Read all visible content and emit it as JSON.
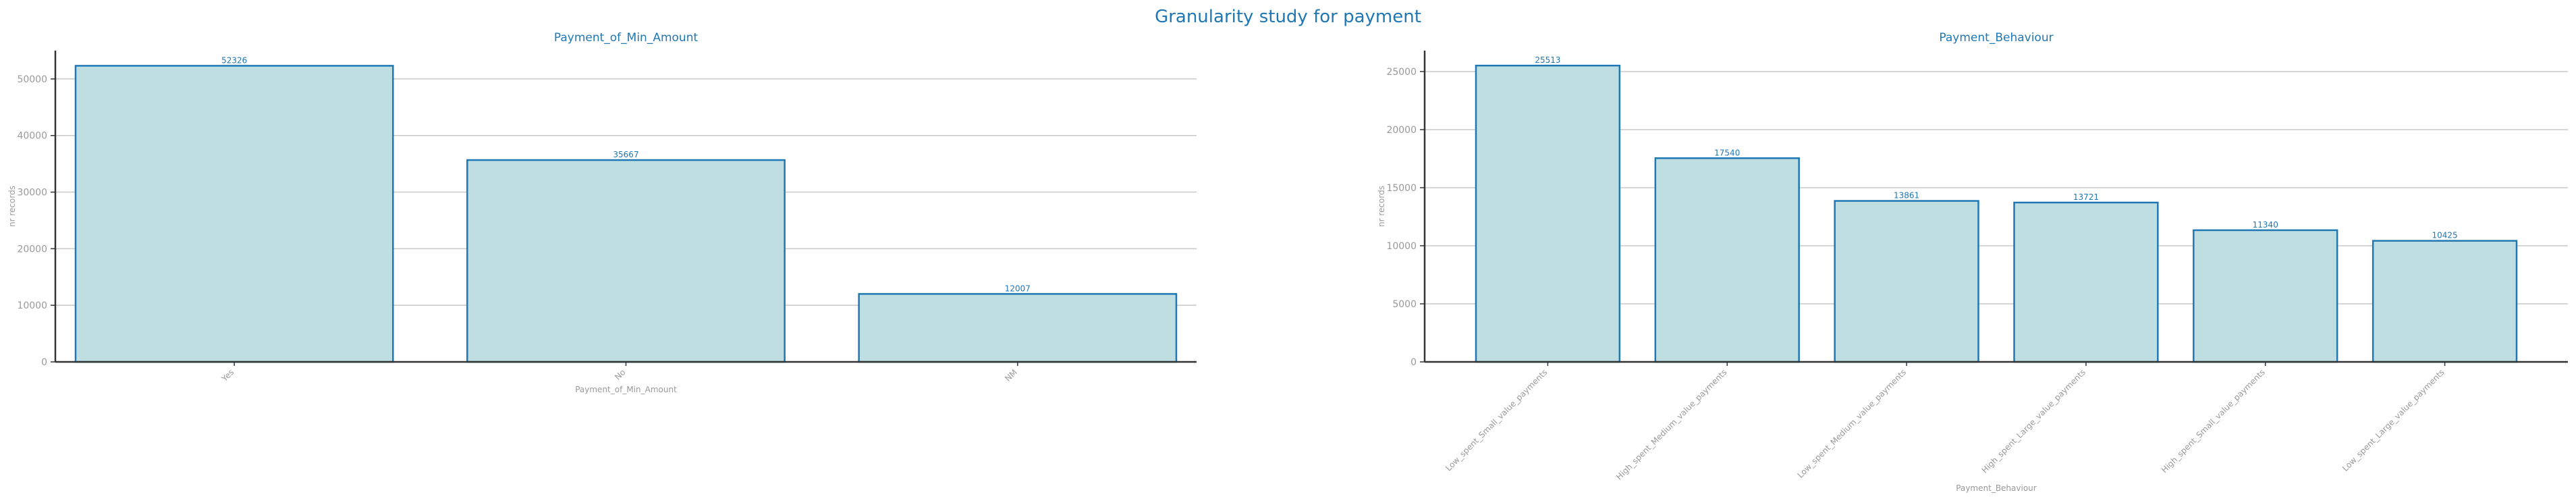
{
  "figure": {
    "title": "Granularity study for payment"
  },
  "colors": {
    "bar_fill": "#bfdee2",
    "bar_edge": "#1f77b4",
    "title": "#1f77b4",
    "axis": "#333333",
    "tick_label": "#999999",
    "grid": "#c8c8c8",
    "value_label": "#1f77b4"
  },
  "chart_data": [
    {
      "type": "bar",
      "title": "Payment_of_Min_Amount",
      "xlabel": "Payment_of_Min_Amount",
      "ylabel": "nr records",
      "categories": [
        "Yes",
        "No",
        "NM"
      ],
      "values": [
        52326,
        35667,
        12007
      ],
      "ylim": [
        0,
        55000
      ],
      "yticks": [
        0,
        10000,
        20000,
        30000,
        40000,
        50000
      ],
      "grid": "horizontal",
      "xtick_rotation": 45
    },
    {
      "type": "bar",
      "title": "Payment_Behaviour",
      "xlabel": "Payment_Behaviour",
      "ylabel": "nr records",
      "categories": [
        "Low_spent_Small_value_payments",
        "High_spent_Medium_value_payments",
        "Low_spent_Medium_value_payments",
        "High_spent_Large_value_payments",
        "High_spent_Small_value_payments",
        "Low_spent_Large_value_payments"
      ],
      "values": [
        25513,
        17540,
        13861,
        13721,
        11340,
        10425
      ],
      "ylim": [
        0,
        26800
      ],
      "yticks": [
        0,
        5000,
        10000,
        15000,
        20000,
        25000
      ],
      "grid": "horizontal",
      "xtick_rotation": 45
    }
  ]
}
